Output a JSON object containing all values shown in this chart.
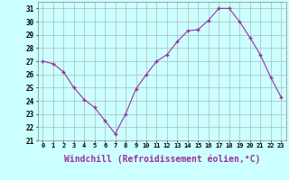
{
  "x": [
    0,
    1,
    2,
    3,
    4,
    5,
    6,
    7,
    8,
    9,
    10,
    11,
    12,
    13,
    14,
    15,
    16,
    17,
    18,
    19,
    20,
    21,
    22,
    23
  ],
  "y": [
    27.0,
    26.8,
    26.2,
    25.0,
    24.1,
    23.5,
    22.5,
    21.5,
    23.0,
    24.9,
    26.0,
    27.0,
    27.5,
    28.5,
    29.3,
    29.4,
    30.1,
    31.0,
    31.0,
    30.0,
    28.8,
    27.5,
    25.8,
    24.3
  ],
  "line_color": "#993399",
  "marker": "+",
  "marker_size": 3,
  "bg_color": "#ccffff",
  "grid_color": "#aabbbb",
  "xlabel": "Windchill (Refroidissement éolien,°C)",
  "xlabel_fontsize": 7,
  "ylabel_ticks": [
    21,
    22,
    23,
    24,
    25,
    26,
    27,
    28,
    29,
    30,
    31
  ],
  "xtick_labels": [
    "0",
    "1",
    "2",
    "3",
    "4",
    "5",
    "6",
    "7",
    "8",
    "9",
    "10",
    "11",
    "12",
    "13",
    "14",
    "15",
    "16",
    "17",
    "18",
    "19",
    "20",
    "21",
    "22",
    "23"
  ],
  "xlim": [
    -0.5,
    23.5
  ],
  "ylim": [
    21,
    31.5
  ]
}
